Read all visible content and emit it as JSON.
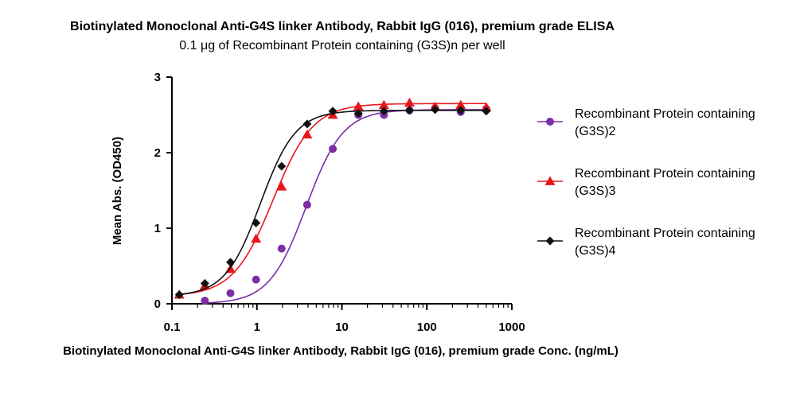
{
  "chart_data": {
    "type": "scatter",
    "title": "Biotinylated Monoclonal Anti-G4S linker Antibody, Rabbit IgG (016), premium grade ELISA",
    "subtitle": "0.1 μg of Recombinant Protein containing (G3S)n per well",
    "xlabel": "Biotinylated Monoclonal Anti-G4S linker Antibody, Rabbit IgG (016), premium grade Conc. (ng/mL)",
    "ylabel": "Mean Abs. (OD450)",
    "xscale": "log",
    "xlim": [
      0.1,
      1000
    ],
    "ylim": [
      0,
      3
    ],
    "x_ticks": [
      "0.1",
      "1",
      "10",
      "100",
      "1000"
    ],
    "y_ticks": [
      "0",
      "1",
      "2",
      "3"
    ],
    "grid": false,
    "legend_position": "right",
    "series": [
      {
        "name": "Recombinant Protein containing (G3S)2",
        "name_lines": [
          "Recombinant Protein containing",
          "(G3S)2"
        ],
        "color": "#7b2fa6",
        "marker": "circle",
        "x": [
          0.244,
          0.488,
          0.977,
          1.953,
          3.906,
          7.8125,
          15.625,
          31.25,
          62.5,
          125,
          250,
          500
        ],
        "y": [
          0.04,
          0.14,
          0.32,
          0.73,
          1.31,
          2.05,
          2.5,
          2.5,
          2.56,
          2.59,
          2.54,
          2.58
        ],
        "fit": {
          "bottom": 0.0,
          "top": 2.57,
          "ec50": 3.8,
          "hill": 2.0
        }
      },
      {
        "name": "Recombinant Protein containing (G3S)3",
        "name_lines": [
          "Recombinant Protein containing",
          "(G3S)3"
        ],
        "color": "#e8161a",
        "marker": "triangle",
        "x": [
          0.122,
          0.244,
          0.488,
          0.977,
          1.953,
          3.906,
          7.8125,
          15.625,
          31.25,
          62.5,
          125,
          250,
          500
        ],
        "y": [
          0.12,
          0.24,
          0.46,
          0.86,
          1.55,
          2.24,
          2.5,
          2.61,
          2.63,
          2.66,
          2.61,
          2.63,
          2.6
        ],
        "fit": {
          "bottom": 0.1,
          "top": 2.65,
          "ec50": 1.55,
          "hill": 1.85
        }
      },
      {
        "name": "Recombinant Protein containing (G3S)4",
        "name_lines": [
          "Recombinant Protein containing",
          "(G3S)4"
        ],
        "color": "#111111",
        "marker": "diamond",
        "x": [
          0.122,
          0.244,
          0.488,
          0.977,
          1.953,
          3.906,
          7.8125,
          15.625,
          31.25,
          62.5,
          125,
          250,
          500
        ],
        "y": [
          0.12,
          0.27,
          0.55,
          1.07,
          1.82,
          2.38,
          2.55,
          2.52,
          2.55,
          2.56,
          2.57,
          2.56,
          2.55
        ],
        "fit": {
          "bottom": 0.1,
          "top": 2.56,
          "ec50": 1.1,
          "hill": 2.1
        }
      }
    ]
  }
}
